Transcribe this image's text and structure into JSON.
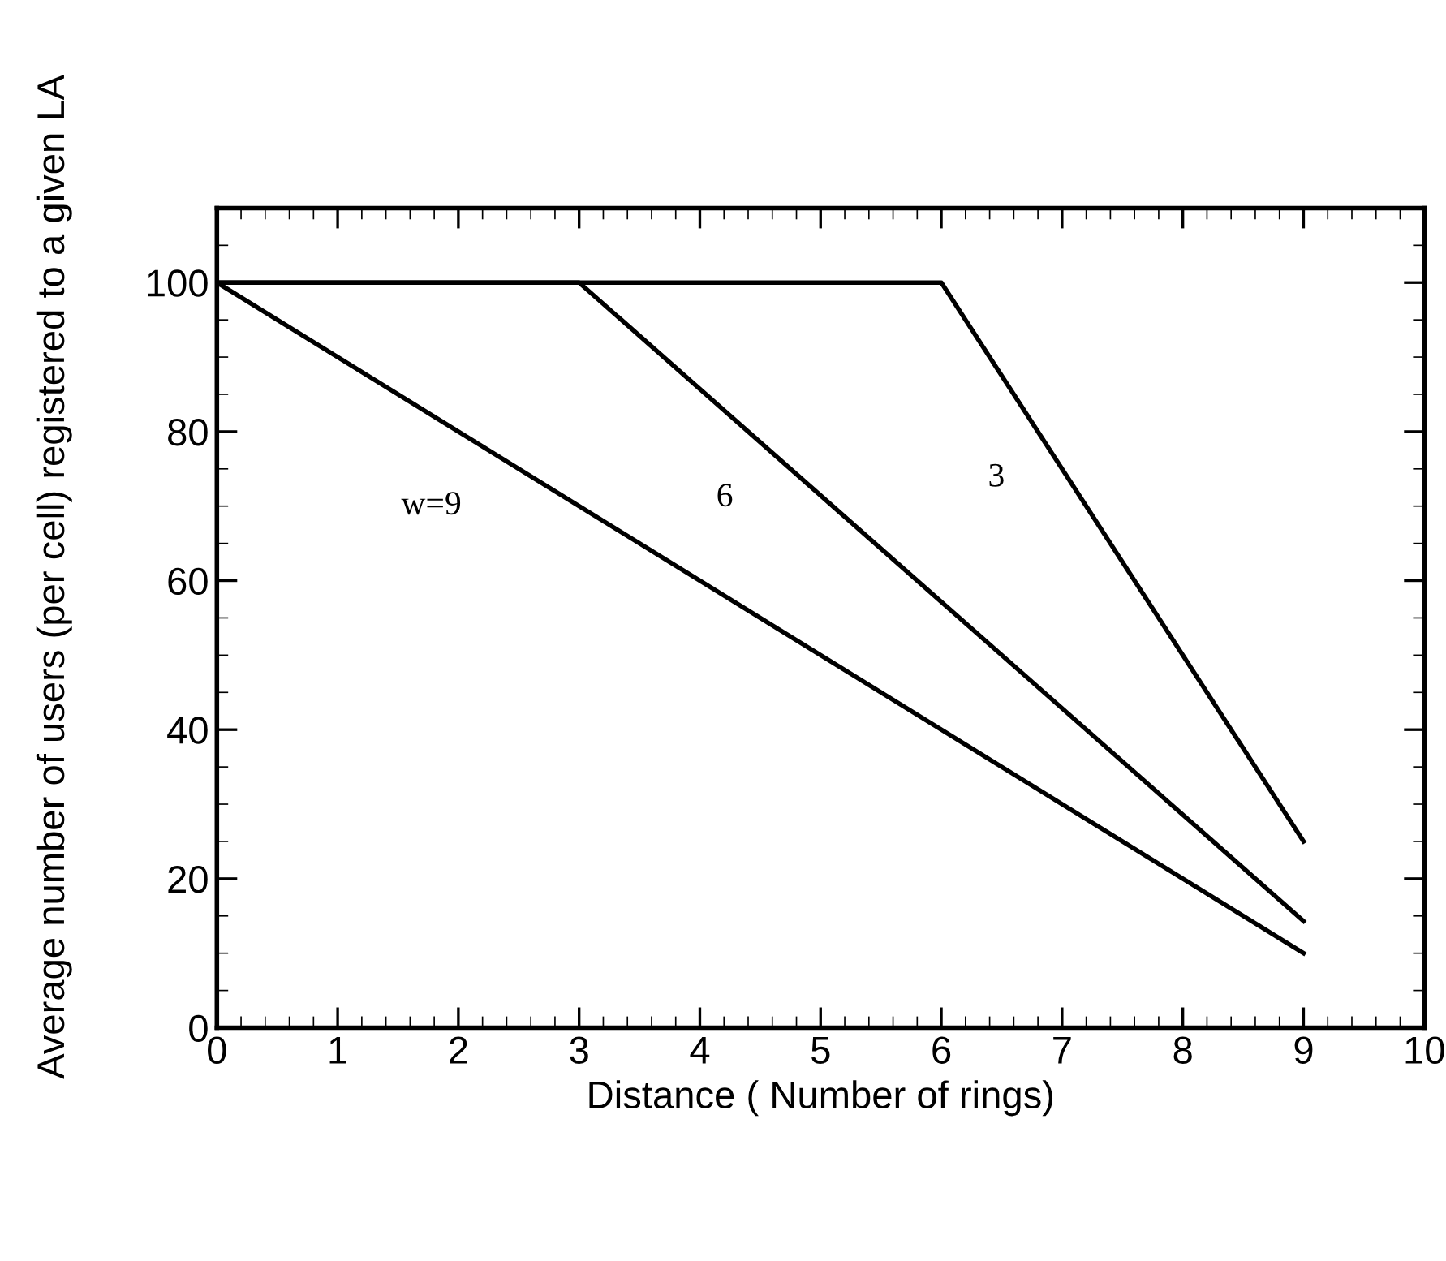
{
  "chart_data": {
    "type": "line",
    "xlabel": "Distance ( Number of rings)",
    "ylabel": "Average number of users (per cell) registered to a given LA",
    "series": [
      {
        "name": "w=9",
        "color": "#000000",
        "x": [
          0,
          9
        ],
        "values": [
          100,
          10
        ]
      },
      {
        "name": "6",
        "color": "#000000",
        "x": [
          0,
          3,
          9
        ],
        "values": [
          100,
          100,
          14.3
        ]
      },
      {
        "name": "3",
        "color": "#000000",
        "x": [
          0,
          6,
          9
        ],
        "values": [
          100,
          100,
          25
        ]
      }
    ],
    "xlim": [
      0,
      10
    ],
    "ylim": [
      0,
      110
    ],
    "xticks": [
      0,
      1,
      2,
      3,
      4,
      5,
      6,
      7,
      8,
      9,
      10
    ],
    "yticks": [
      0,
      20,
      40,
      60,
      80,
      100
    ],
    "grid": false,
    "legend": false,
    "marker": "none",
    "line_style": "solid"
  }
}
